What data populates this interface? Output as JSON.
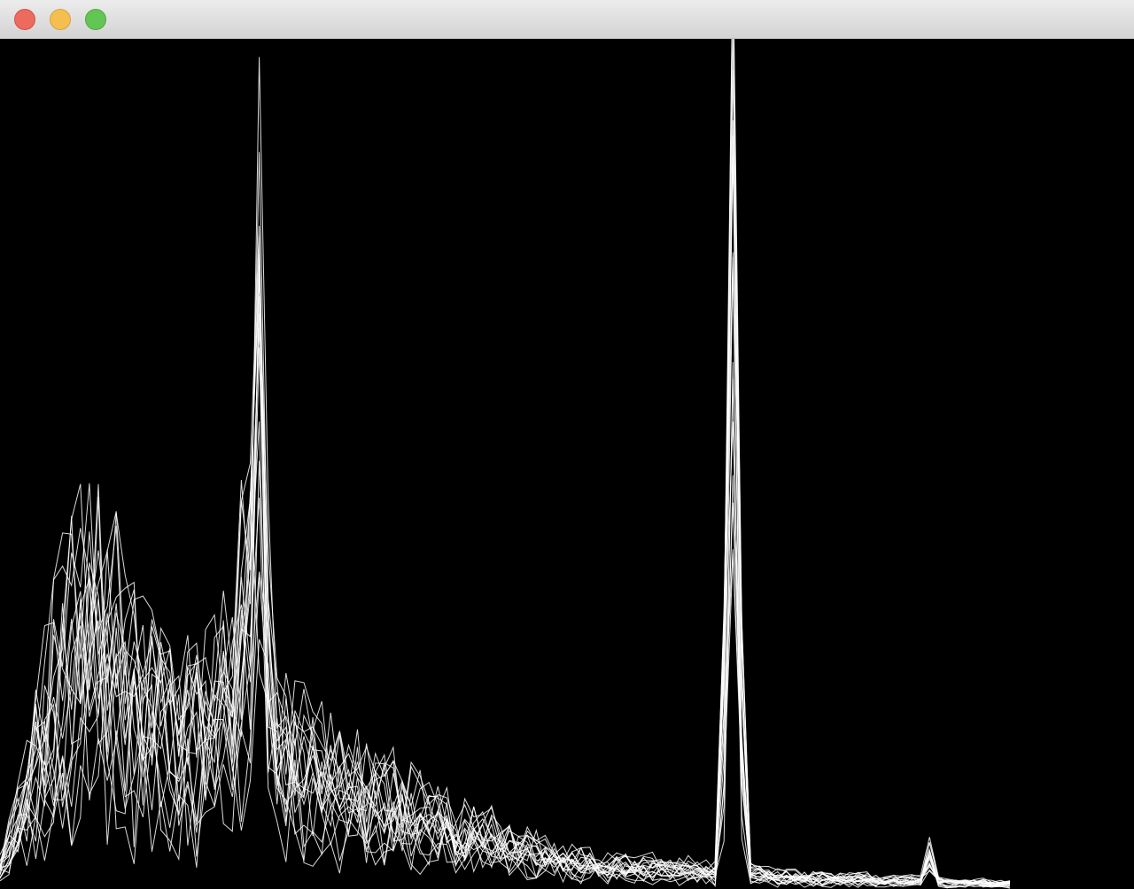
{
  "window": {
    "title": "",
    "buttons": {
      "close_color": "#ed6a5e",
      "minimize_color": "#f5bf4f",
      "maximize_color": "#62c554"
    }
  },
  "canvas": {
    "background": "#000000",
    "stroke_color": "#ffffff"
  },
  "chart_data": {
    "type": "line",
    "title": "",
    "xlabel": "",
    "ylabel": "",
    "grid": false,
    "legend": "none",
    "ylim": [
      0,
      700
    ],
    "x": [
      0,
      1,
      2,
      3,
      4,
      5,
      6,
      7,
      8,
      9,
      10,
      11,
      12,
      13,
      14,
      15,
      16,
      17,
      18,
      19,
      20,
      21,
      22,
      23,
      24,
      25,
      26,
      27,
      28,
      29,
      30,
      31,
      32,
      33,
      34,
      35,
      36,
      37,
      38,
      39,
      40,
      41,
      42,
      43,
      44,
      45,
      46,
      47,
      48,
      49,
      50,
      51,
      52,
      53,
      54,
      55,
      56,
      57,
      58,
      59,
      60,
      61,
      62,
      63,
      64,
      65,
      66,
      67,
      68,
      69,
      70,
      71,
      72,
      73,
      74,
      75,
      76,
      77,
      78,
      79,
      80,
      81,
      82,
      83,
      84,
      85,
      86,
      87,
      88,
      89,
      90,
      91,
      92,
      93,
      94,
      95,
      96,
      97,
      98,
      99,
      100,
      101,
      102,
      103,
      104,
      105,
      106,
      107,
      108,
      109,
      110,
      111,
      112,
      113
    ],
    "series_profile": {
      "base": [
        20,
        40,
        60,
        80,
        110,
        150,
        180,
        200,
        220,
        240,
        250,
        250,
        230,
        215,
        200,
        185,
        175,
        165,
        155,
        150,
        145,
        145,
        150,
        155,
        165,
        180,
        200,
        230,
        280,
        520,
        240,
        130,
        125,
        120,
        118,
        110,
        105,
        100,
        95,
        90,
        95,
        85,
        80,
        78,
        82,
        75,
        72,
        68,
        65,
        60,
        58,
        55,
        52,
        50,
        48,
        45,
        42,
        40,
        38,
        36,
        35,
        32,
        30,
        28,
        26,
        25,
        24,
        22,
        20,
        20,
        20,
        20,
        20,
        20,
        18,
        18,
        18,
        18,
        18,
        16,
        16,
        160,
        680,
        160,
        16,
        14,
        14,
        12,
        12,
        12,
        10,
        10,
        10,
        10,
        10,
        10,
        10,
        10,
        8,
        8,
        8,
        8,
        8,
        8,
        30,
        8,
        6,
        6,
        6,
        6,
        6,
        5,
        5,
        5
      ],
      "series_count": 18
    }
  }
}
